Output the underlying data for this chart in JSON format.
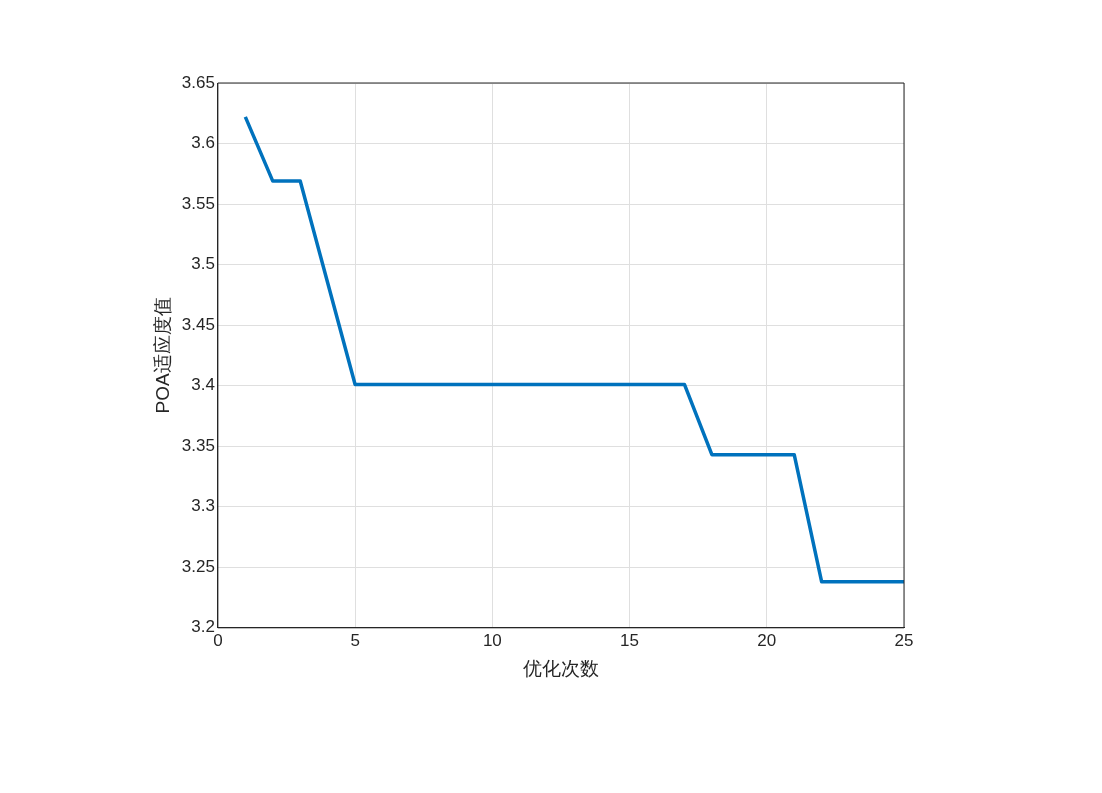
{
  "chart_data": {
    "type": "line",
    "xlabel": "优化次数",
    "ylabel": "POA适应度值",
    "x": [
      1,
      2,
      3,
      4,
      5,
      6,
      7,
      8,
      9,
      10,
      11,
      12,
      13,
      14,
      15,
      16,
      17,
      18,
      19,
      20,
      21,
      22,
      23,
      24,
      25
    ],
    "series": [
      {
        "color": "#0072bd",
        "values": [
          3.622,
          3.569,
          3.569,
          3.485,
          3.401,
          3.401,
          3.401,
          3.401,
          3.401,
          3.401,
          3.401,
          3.401,
          3.401,
          3.401,
          3.401,
          3.401,
          3.401,
          3.343,
          3.343,
          3.343,
          3.343,
          3.238,
          3.238,
          3.238,
          3.238
        ]
      }
    ],
    "xlim": [
      0,
      25
    ],
    "xticks": [
      0,
      5,
      10,
      15,
      20,
      25
    ],
    "ylim": [
      3.2,
      3.65
    ],
    "yticks": [
      3.2,
      3.25,
      3.3,
      3.35,
      3.4,
      3.45,
      3.5,
      3.55,
      3.6,
      3.65
    ],
    "grid": true,
    "marker": "none",
    "line_style": "solid"
  }
}
